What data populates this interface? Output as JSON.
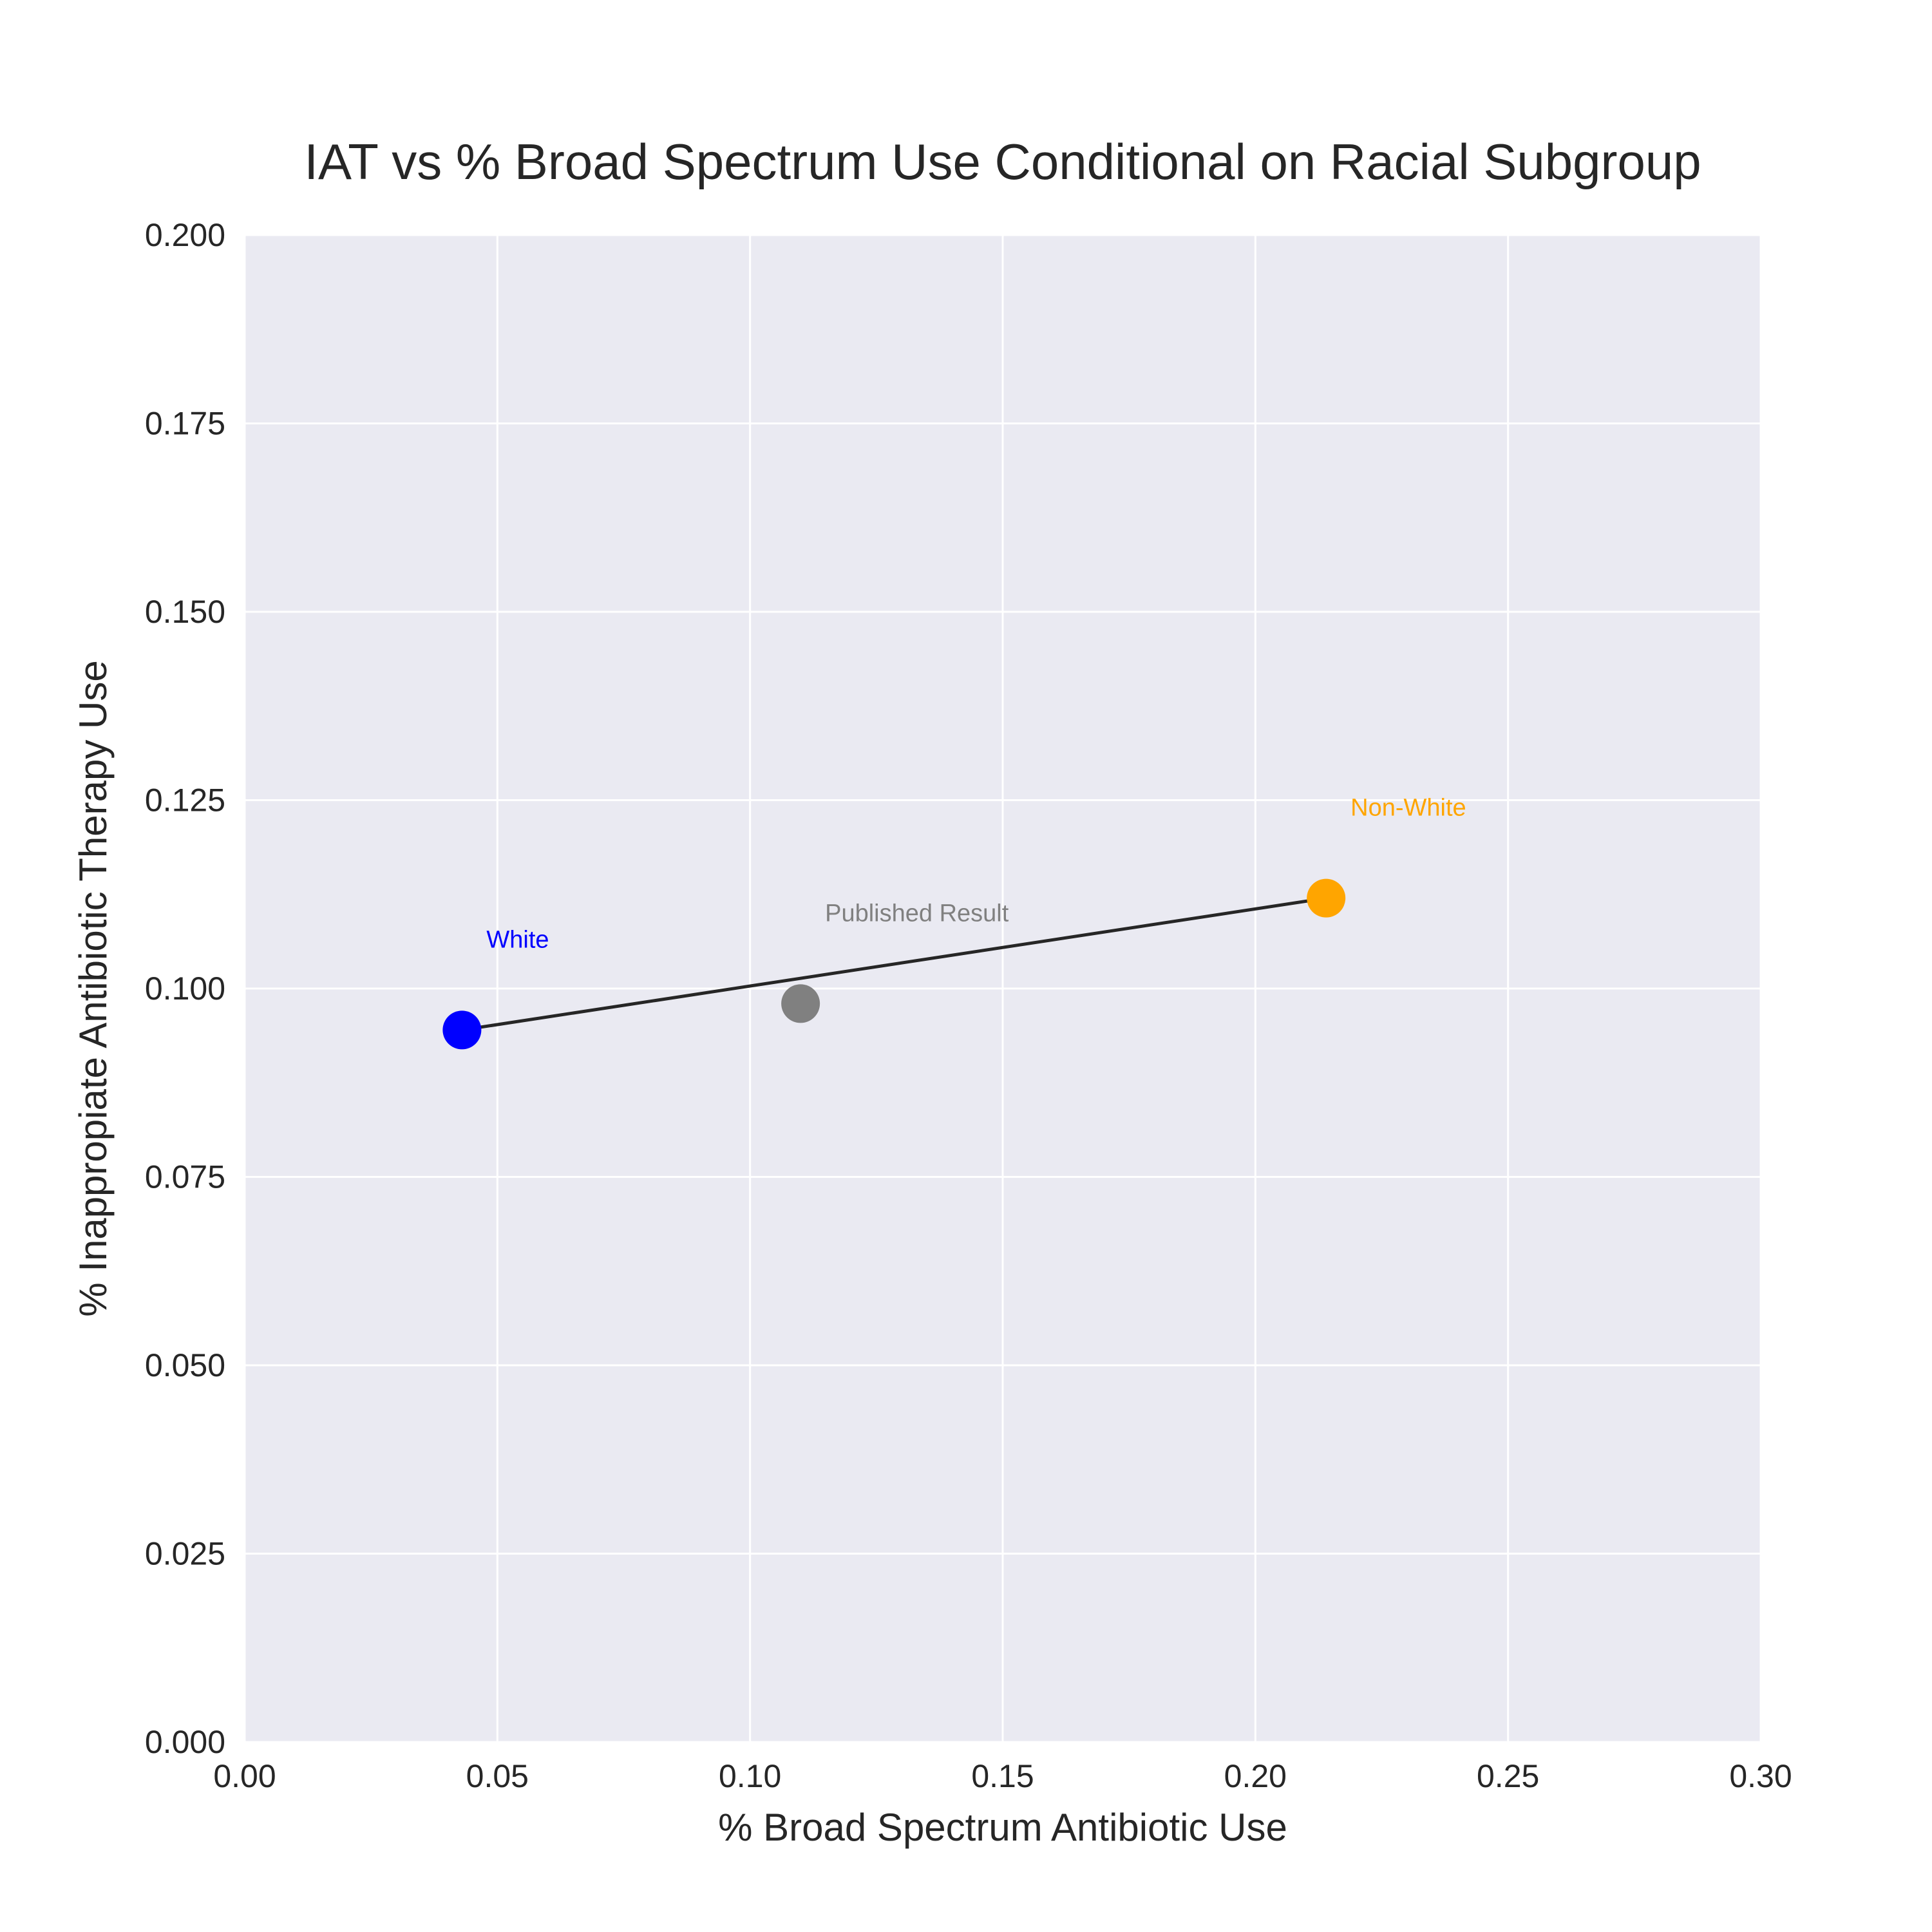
{
  "chart_data": {
    "type": "scatter",
    "title": "IAT vs % Broad Spectrum Use Conditional on Racial Subgroup",
    "xlabel": "% Broad Spectrum Antibiotic Use",
    "ylabel": "% Inappropiate Antibiotic Therapy Use",
    "xlim": [
      0.0,
      0.3
    ],
    "ylim": [
      0.0,
      0.2
    ],
    "xticks": [
      "0.00",
      "0.05",
      "0.10",
      "0.15",
      "0.20",
      "0.25",
      "0.30"
    ],
    "yticks": [
      "0.000",
      "0.025",
      "0.050",
      "0.075",
      "0.100",
      "0.125",
      "0.150",
      "0.175",
      "0.200"
    ],
    "grid": true,
    "background_color": "#eaeaf2",
    "points": [
      {
        "label": "White",
        "x": 0.043,
        "y": 0.0945,
        "color": "#0000ff"
      },
      {
        "label": "Published Result",
        "x": 0.11,
        "y": 0.098,
        "color": "#808080"
      },
      {
        "label": "Non-White",
        "x": 0.214,
        "y": 0.112,
        "color": "#ffa500"
      }
    ],
    "line": {
      "from": {
        "x": 0.043,
        "y": 0.0945
      },
      "to": {
        "x": 0.214,
        "y": 0.112
      },
      "color": "#262626"
    }
  }
}
